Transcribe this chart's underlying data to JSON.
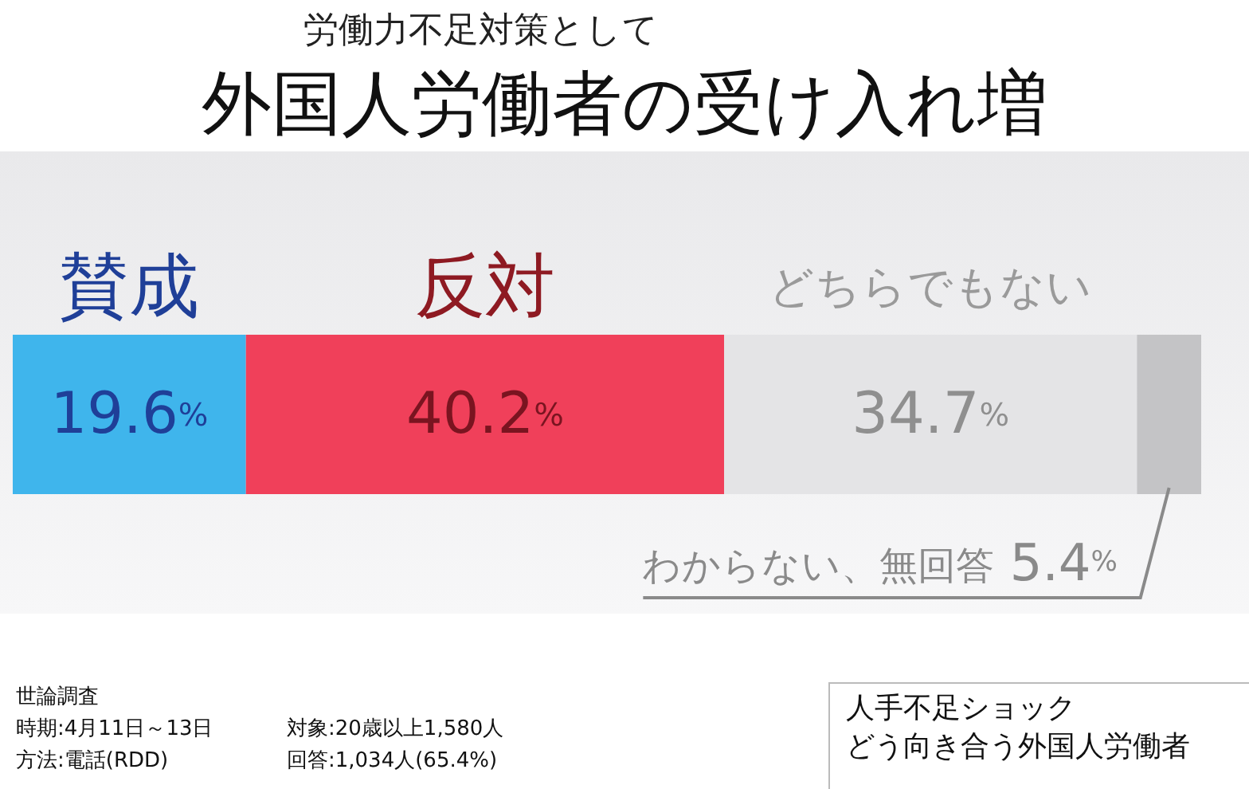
{
  "chart_data": {
    "type": "bar",
    "orientation": "horizontal",
    "stacked": true,
    "subtitle": "労働力不足対策として",
    "title": "外国人労働者の受け入れ増",
    "categories": [
      null
    ],
    "legend": false,
    "series": [
      {
        "name": "賛成",
        "color": "#3fb5ec",
        "values": [
          19.6
        ],
        "value_labels": [
          "19.6%"
        ]
      },
      {
        "name": "反対",
        "color": "#f0405a",
        "values": [
          40.2
        ],
        "value_labels": [
          "40.2%"
        ]
      },
      {
        "name": "どちらでもない",
        "color": "#e4e4e6",
        "values": [
          34.7
        ],
        "value_labels": [
          "34.7%"
        ]
      },
      {
        "name": "わからない、無回答",
        "color": "#c4c4c6",
        "values": [
          5.4
        ],
        "value_labels": [
          "5.4%"
        ]
      }
    ],
    "annotations": [
      "世論調査",
      "時期:4月11日～13日",
      "方法:電話(RDD)",
      "対象:20歳以上1,580人",
      "回答:1,034人(65.4%)",
      "人手不足ショック",
      "どう向き合う外国人労働者"
    ]
  }
}
